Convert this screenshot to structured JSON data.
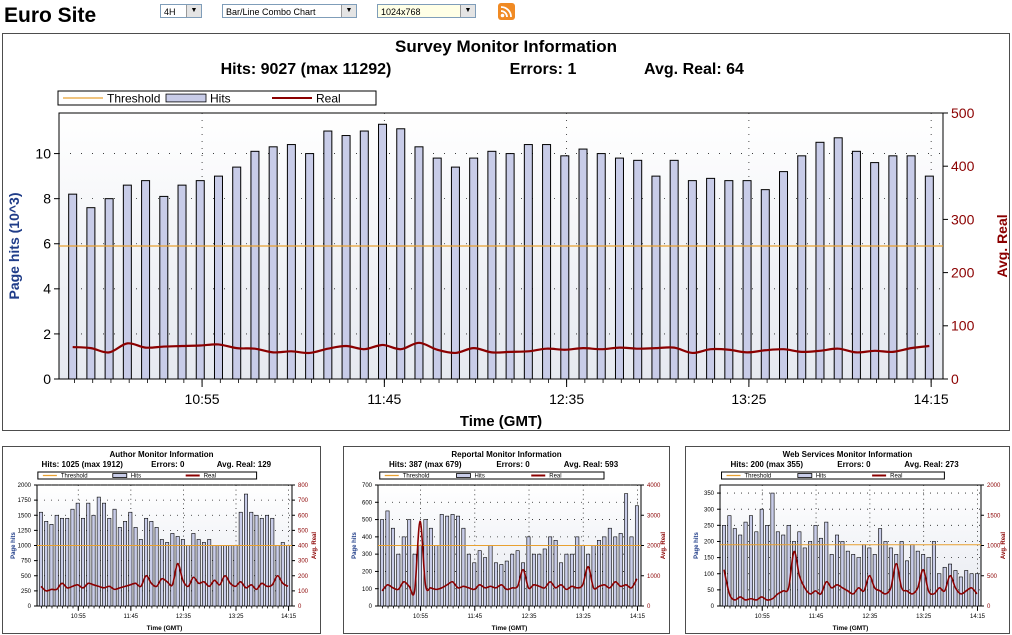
{
  "header": {
    "site_title": "Euro Site",
    "period_select": "4H",
    "chart_type_select": "Bar/Line Combo Chart",
    "resolution_select": "1024x768",
    "rss_icon": "rss-feed-icon"
  },
  "colors": {
    "bar_fill": "#c8cce8",
    "threshold": "#e8a030",
    "real": "#8b0000",
    "left_axis": "#1f3c88",
    "right_axis": "#8b0000",
    "plot_bg": "#e6e9f0"
  },
  "chart_data": [
    {
      "id": "main",
      "type": "bar-line-combo",
      "title": "Survey Monitor Information",
      "subtitle": {
        "hits": "Hits: 9027 (max 11292)",
        "errors": "Errors: 1",
        "avg_real": "Avg. Real: 64"
      },
      "legend": [
        "Threshold",
        "Hits",
        "Real"
      ],
      "xlabel": "Time (GMT)",
      "ylabel": "Page hits (10^3)",
      "y2label": "Avg. Real",
      "ylim": [
        0,
        11.8
      ],
      "y2lim": [
        0,
        500
      ],
      "yticks": [
        "0",
        "2",
        "4",
        "6",
        "8",
        "10"
      ],
      "y2ticks": [
        "0",
        "100",
        "200",
        "300",
        "400",
        "500"
      ],
      "xticks": [
        {
          "label": "10:55",
          "index": 7
        },
        {
          "label": "11:45",
          "index": 17
        },
        {
          "label": "12:35",
          "index": 27
        },
        {
          "label": "13:25",
          "index": 37
        },
        {
          "label": "14:15",
          "index": 47
        }
      ],
      "threshold": 5.9,
      "hits": [
        8.2,
        7.6,
        8.0,
        8.6,
        8.8,
        8.1,
        8.6,
        8.8,
        9.0,
        9.4,
        10.1,
        10.3,
        10.4,
        10.0,
        11.0,
        10.8,
        11.0,
        11.3,
        11.1,
        10.3,
        9.8,
        9.4,
        9.8,
        10.1,
        10.0,
        10.4,
        10.4,
        9.9,
        10.2,
        10.0,
        9.8,
        9.7,
        9.0,
        9.7,
        8.8,
        8.9,
        8.8,
        8.8,
        8.4,
        9.2,
        9.9,
        10.5,
        10.7,
        10.1,
        9.6,
        9.9,
        9.9,
        9.0
      ],
      "real": [
        60,
        58,
        50,
        67,
        59,
        61,
        62,
        63,
        65,
        58,
        57,
        50,
        52,
        49,
        57,
        62,
        56,
        64,
        56,
        68,
        55,
        49,
        58,
        50,
        51,
        52,
        57,
        55,
        58,
        56,
        59,
        57,
        58,
        59,
        49,
        56,
        55,
        50,
        54,
        56,
        51,
        53,
        57,
        50,
        53,
        51,
        58,
        62
      ]
    },
    {
      "id": "author",
      "type": "bar-line-combo",
      "title": "Author Monitor Information",
      "subtitle": {
        "hits": "Hits: 1025 (max 1912)",
        "errors": "Errors: 0",
        "avg_real": "Avg. Real: 129"
      },
      "legend": [
        "Threshold",
        "Hits",
        "Real"
      ],
      "xlabel": "Time (GMT)",
      "ylabel": "Page hits",
      "y2label": "Avg. Real",
      "ylim": [
        0,
        2000
      ],
      "y2lim": [
        0,
        800
      ],
      "yticks": [
        "0",
        "250",
        "500",
        "750",
        "1000",
        "1250",
        "1500",
        "1750",
        "2000"
      ],
      "y2ticks": [
        "0",
        "100",
        "200",
        "300",
        "400",
        "500",
        "600",
        "700",
        "800"
      ],
      "xticks": [
        {
          "label": "10:55",
          "index": 7
        },
        {
          "label": "11:45",
          "index": 17
        },
        {
          "label": "12:35",
          "index": 27
        },
        {
          "label": "13:25",
          "index": 37
        },
        {
          "label": "14:15",
          "index": 47
        }
      ],
      "threshold": 1000,
      "hits": [
        1550,
        1400,
        1350,
        1500,
        1450,
        1450,
        1600,
        1700,
        1450,
        1700,
        1500,
        1800,
        1700,
        1450,
        1600,
        1300,
        1400,
        1550,
        1300,
        1100,
        1450,
        1400,
        1300,
        1100,
        1050,
        1200,
        1150,
        1100,
        1000,
        1200,
        1100,
        1050,
        1100,
        1000,
        1000,
        1000,
        1000,
        1000,
        1550,
        1850,
        1550,
        1500,
        1450,
        1500,
        1450,
        1000,
        1050,
        1000
      ],
      "real": [
        130,
        100,
        110,
        110,
        150,
        120,
        130,
        140,
        120,
        150,
        140,
        130,
        120,
        130,
        110,
        120,
        130,
        140,
        150,
        130,
        200,
        150,
        130,
        180,
        160,
        140,
        280,
        170,
        130,
        190,
        150,
        160,
        130,
        170,
        140,
        200,
        150,
        130,
        160,
        120,
        140,
        110,
        150,
        130,
        140,
        200,
        150,
        130
      ]
    },
    {
      "id": "reportal",
      "type": "bar-line-combo",
      "title": "Reportal Monitor Information",
      "subtitle": {
        "hits": "Hits: 387 (max 679)",
        "errors": "Errors: 0",
        "avg_real": "Avg. Real: 593"
      },
      "legend": [
        "Threshold",
        "Hits",
        "Real"
      ],
      "xlabel": "Time (GMT)",
      "ylabel": "Page hits",
      "y2label": "Avg. Real",
      "ylim": [
        0,
        700
      ],
      "y2lim": [
        0,
        4000
      ],
      "yticks": [
        "0",
        "100",
        "200",
        "300",
        "400",
        "500",
        "600",
        "700"
      ],
      "y2ticks": [
        "0",
        "1000",
        "2000",
        "3000",
        "4000"
      ],
      "xticks": [
        {
          "label": "10:55",
          "index": 7
        },
        {
          "label": "11:45",
          "index": 17
        },
        {
          "label": "12:35",
          "index": 27
        },
        {
          "label": "13:25",
          "index": 37
        },
        {
          "label": "14:15",
          "index": 47
        }
      ],
      "threshold": 350,
      "hits": [
        500,
        550,
        450,
        300,
        400,
        500,
        300,
        350,
        500,
        450,
        350,
        530,
        520,
        530,
        520,
        450,
        300,
        250,
        320,
        280,
        350,
        250,
        240,
        260,
        300,
        320,
        250,
        400,
        300,
        300,
        330,
        400,
        380,
        250,
        300,
        300,
        400,
        350,
        300,
        350,
        380,
        400,
        450,
        400,
        420,
        650,
        400,
        580
      ],
      "real": [
        500,
        700,
        600,
        550,
        800,
        650,
        500,
        2800,
        700,
        600,
        550,
        600,
        700,
        800,
        600,
        650,
        600,
        550,
        700,
        600,
        650,
        600,
        700,
        550,
        600,
        650,
        1200,
        600,
        700,
        650,
        600,
        800,
        600,
        700,
        550,
        650,
        600,
        700,
        1300,
        600,
        650,
        700,
        600,
        800,
        650,
        700,
        600,
        900
      ]
    },
    {
      "id": "webservices",
      "type": "bar-line-combo",
      "title": "Web Services Monitor Information",
      "subtitle": {
        "hits": "Hits: 200 (max 355)",
        "errors": "Errors: 0",
        "avg_real": "Avg. Real: 273"
      },
      "legend": [
        "Threshold",
        "Hits",
        "Real"
      ],
      "xlabel": "Time (GMT)",
      "ylabel": "Page hits",
      "y2label": "Avg. Real",
      "ylim": [
        0,
        375
      ],
      "y2lim": [
        0,
        2000
      ],
      "yticks": [
        "0",
        "50",
        "100",
        "150",
        "200",
        "250",
        "300",
        "350"
      ],
      "y2ticks": [
        "0",
        "500",
        "1000",
        "1500",
        "2000"
      ],
      "xticks": [
        {
          "label": "10:55",
          "index": 7
        },
        {
          "label": "11:45",
          "index": 17
        },
        {
          "label": "12:35",
          "index": 27
        },
        {
          "label": "13:25",
          "index": 37
        },
        {
          "label": "14:15",
          "index": 47
        }
      ],
      "threshold": 190,
      "hits": [
        250,
        280,
        240,
        220,
        260,
        280,
        230,
        300,
        250,
        350,
        230,
        220,
        250,
        200,
        230,
        180,
        200,
        250,
        210,
        260,
        160,
        220,
        200,
        170,
        160,
        150,
        190,
        180,
        160,
        240,
        200,
        180,
        160,
        200,
        140,
        190,
        170,
        160,
        150,
        200,
        100,
        120,
        130,
        110,
        90,
        110,
        100,
        100
      ],
      "real": [
        600,
        200,
        100,
        150,
        100,
        120,
        100,
        150,
        100,
        120,
        200,
        250,
        300,
        900,
        500,
        300,
        200,
        250,
        200,
        400,
        300,
        350,
        300,
        250,
        200,
        300,
        250,
        500,
        300,
        250,
        200,
        300,
        700,
        300,
        250,
        200,
        300,
        600,
        250,
        200,
        300,
        250,
        500,
        300,
        200,
        250,
        300,
        200
      ]
    }
  ]
}
